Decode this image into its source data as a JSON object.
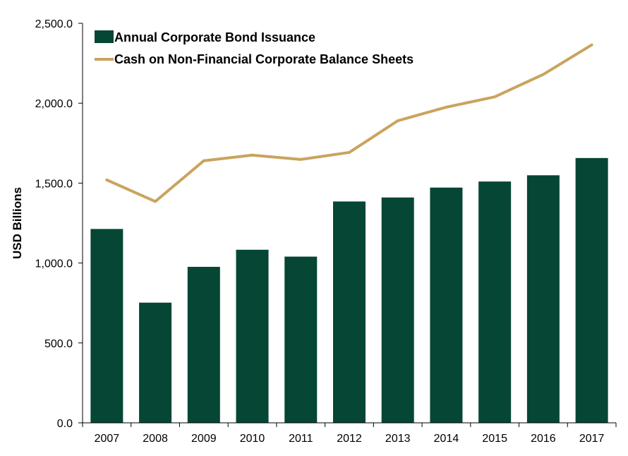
{
  "chart_data": {
    "type": "bar",
    "categories": [
      "2007",
      "2008",
      "2009",
      "2010",
      "2011",
      "2012",
      "2013",
      "2014",
      "2015",
      "2016",
      "2017"
    ],
    "series": [
      {
        "name": "Annual Corporate Bond Issuance",
        "type": "bar",
        "color": "#064635",
        "values": [
          1213,
          752,
          976,
          1083,
          1040,
          1385,
          1410,
          1472,
          1510,
          1549,
          1657
        ]
      },
      {
        "name": "Cash on Non-Financial Corporate Balance Sheets",
        "type": "line",
        "color": "#C9A45F",
        "values": [
          1520,
          1385,
          1640,
          1675,
          1648,
          1692,
          1890,
          1975,
          2040,
          2180,
          2365
        ]
      }
    ],
    "ylabel": "USD Billions",
    "ylim": [
      0,
      2500
    ],
    "yticks": [
      "0.0",
      "500.0",
      "1,000.0",
      "1,500.0",
      "2,000.0",
      "2,500.0"
    ],
    "grid": false,
    "legend_position": "top-left"
  }
}
